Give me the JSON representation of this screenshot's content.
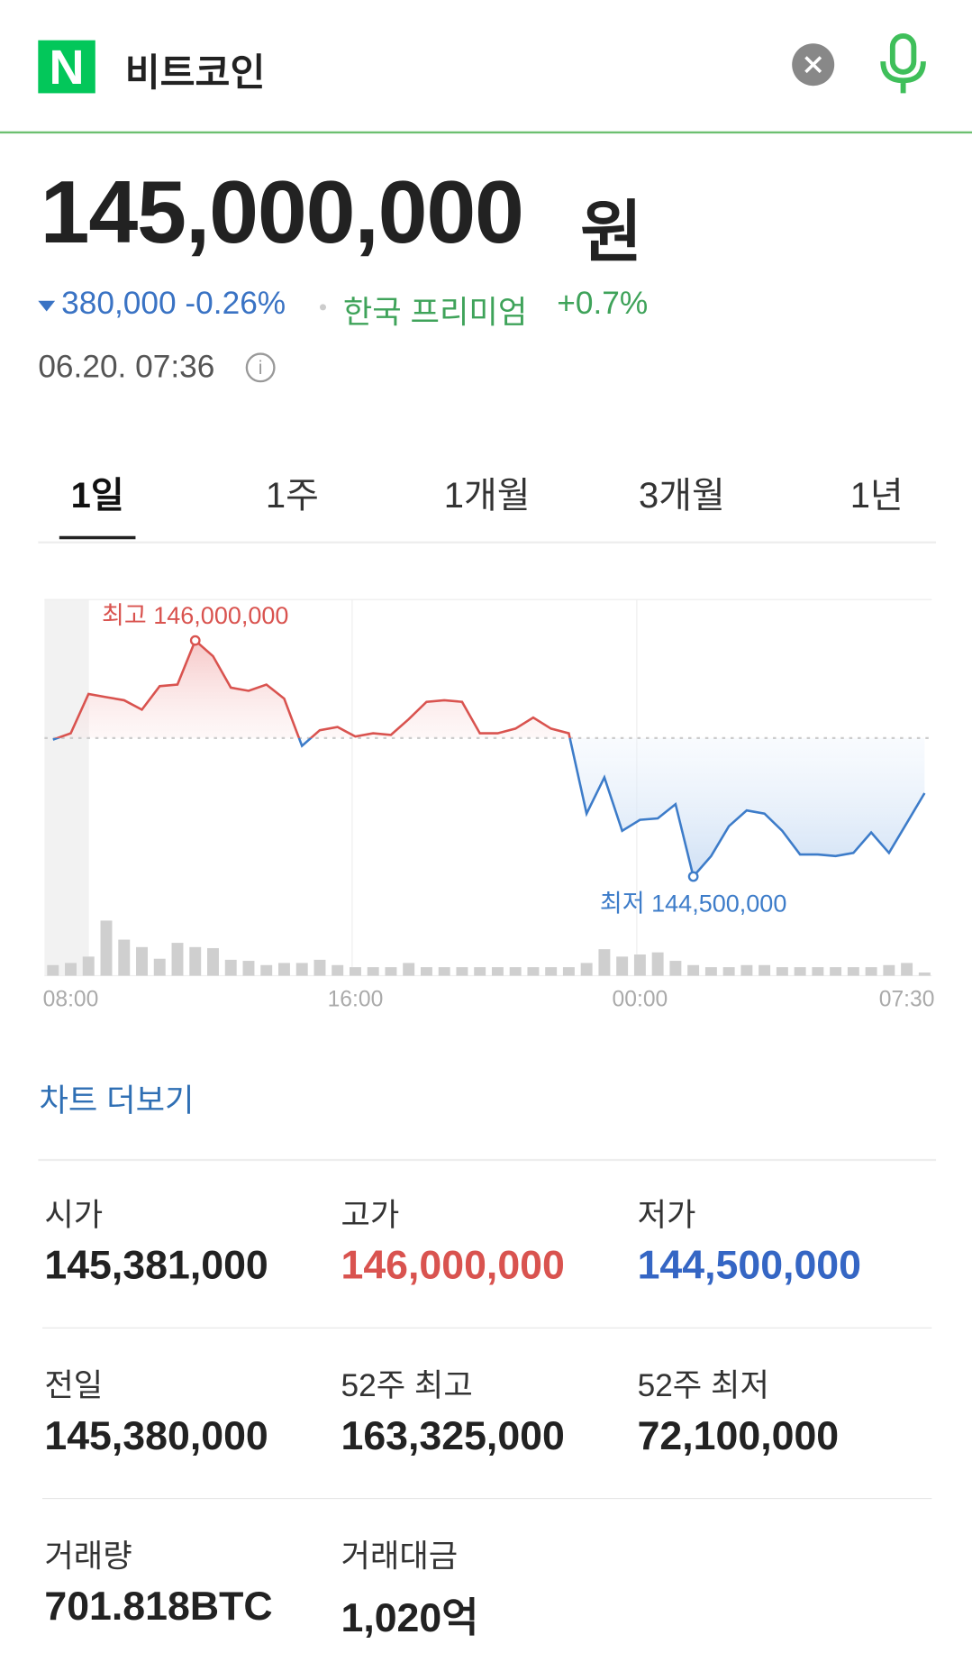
{
  "header": {
    "logo": "N",
    "query": "비트코인"
  },
  "price": {
    "value": "145,000,000",
    "unit": "원",
    "change": "380,000 -0.26%",
    "premium_label": "한국 프리미엄",
    "premium": "+0.7%",
    "timestamp": "06.20. 07:36"
  },
  "tabs": [
    "1일",
    "1주",
    "1개월",
    "3개월",
    "1년"
  ],
  "chart_data": {
    "type": "line",
    "categories": [
      null,
      "08:00",
      null,
      null,
      null,
      null,
      null,
      null,
      null,
      null,
      null,
      null,
      null,
      null,
      null,
      null,
      null,
      "16:00",
      null,
      null,
      null,
      null,
      null,
      null,
      null,
      null,
      null,
      null,
      null,
      null,
      null,
      null,
      null,
      "00:00",
      null,
      null,
      null,
      null,
      null,
      null,
      null,
      null,
      null,
      null,
      null,
      null,
      null,
      null,
      "07:30",
      null
    ],
    "values": [
      145370000,
      145410000,
      145660000,
      145640000,
      145620000,
      145560000,
      145710000,
      145720000,
      146000000,
      145900000,
      145700000,
      145680000,
      145720000,
      145630000,
      145330000,
      145430000,
      145450000,
      145390000,
      145410000,
      145400000,
      145500000,
      145610000,
      145620000,
      145610000,
      145410000,
      145410000,
      145440000,
      145510000,
      145440000,
      145410000,
      144900000,
      145130000,
      144790000,
      144860000,
      144870000,
      144960000,
      144500000,
      144630000,
      144820000,
      144920000,
      144900000,
      144790000,
      144640000,
      144640000,
      144630000,
      144650000,
      144780000,
      144650000,
      144840000,
      145030000
    ],
    "volume": [
      10,
      12,
      18,
      52,
      34,
      27,
      16,
      31,
      27,
      26,
      15,
      14,
      10,
      12,
      12,
      15,
      10,
      8,
      8,
      8,
      12,
      8,
      8,
      8,
      8,
      8,
      8,
      8,
      8,
      8,
      12,
      25,
      18,
      20,
      22,
      14,
      10,
      8,
      8,
      10,
      10,
      8,
      8,
      8,
      8,
      8,
      8,
      10,
      12,
      3
    ],
    "ylim": [
      144200000,
      146300000
    ],
    "volume_lim": [
      0,
      60
    ],
    "baseline": 145380000,
    "color_up": "#d9534f",
    "color_down": "#3d7cc9",
    "high_label": "최고 146,000,000",
    "low_label": "최저 144,500,000"
  },
  "more_link": "차트 더보기",
  "stats": [
    {
      "label": "시가",
      "value": "145,381,000"
    },
    {
      "label": "고가",
      "value": "146,000,000"
    },
    {
      "label": "저가",
      "value": "144,500,000"
    },
    {
      "label": "전일",
      "value": "145,380,000"
    },
    {
      "label": "52주 최고",
      "value": "163,325,000"
    },
    {
      "label": "52주 최저",
      "value": "72,100,000"
    },
    {
      "label": "거래량",
      "value": "701.818BTC"
    },
    {
      "label": "거래대금",
      "value": "1,020억"
    }
  ]
}
